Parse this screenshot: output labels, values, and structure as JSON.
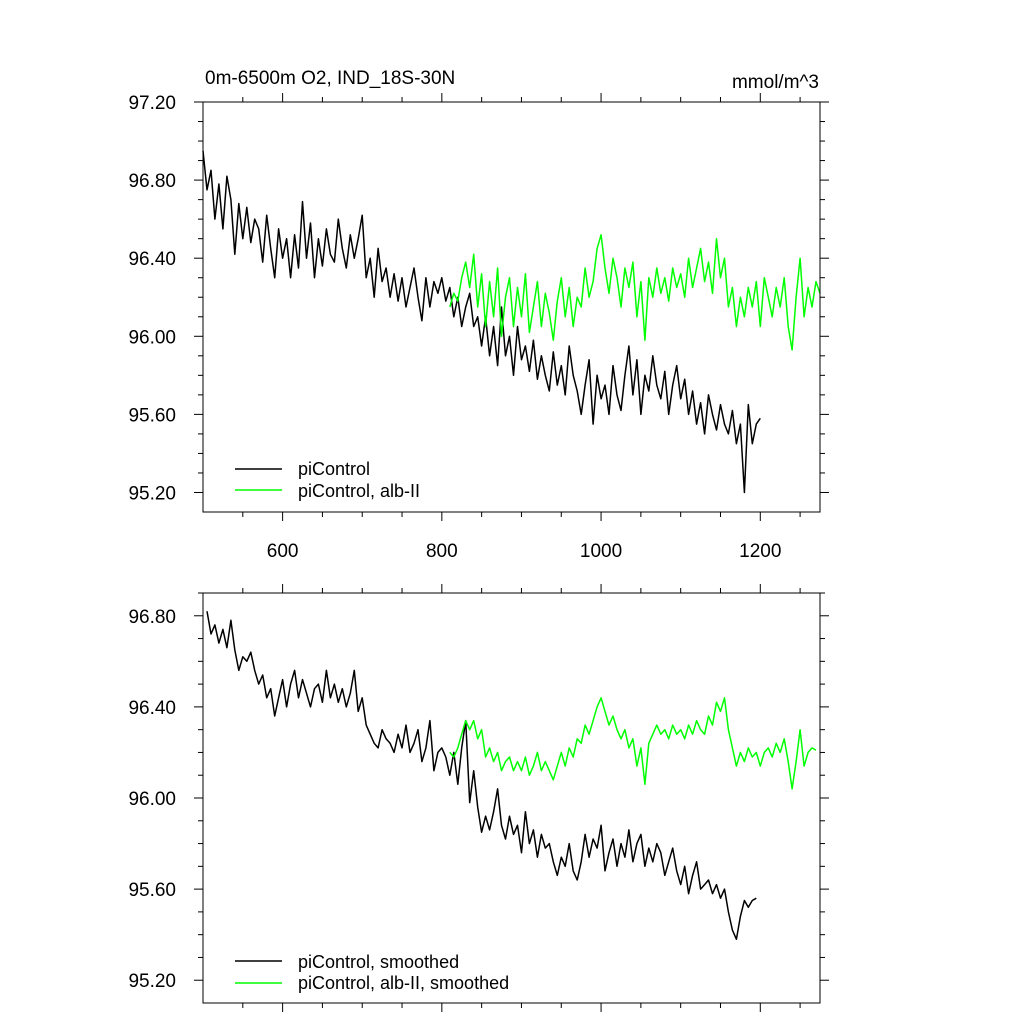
{
  "chart_data": [
    {
      "type": "line",
      "title": "0m-6500m O2, IND_18S-30N",
      "units": "mmol/m^3",
      "xlim": [
        500,
        1275
      ],
      "ylim": [
        95.1,
        97.2
      ],
      "x_ticks": [
        600,
        800,
        1000,
        1200
      ],
      "x_tick_labels": [
        "600",
        "800",
        "1000",
        "1200"
      ],
      "y_ticks": [
        95.2,
        95.6,
        96.0,
        96.4,
        96.8,
        97.2
      ],
      "y_tick_labels": [
        "95.20",
        "95.60",
        "96.00",
        "96.40",
        "96.80",
        "97.20"
      ],
      "legend_position": "bottom-left",
      "series": [
        {
          "name": "piControl",
          "color": "#000000",
          "x": [
            500,
            505,
            510,
            515,
            520,
            525,
            530,
            535,
            540,
            545,
            550,
            555,
            560,
            565,
            570,
            575,
            580,
            585,
            590,
            595,
            600,
            605,
            610,
            615,
            620,
            625,
            630,
            635,
            640,
            645,
            650,
            655,
            660,
            665,
            670,
            675,
            680,
            685,
            690,
            695,
            700,
            705,
            710,
            715,
            720,
            725,
            730,
            735,
            740,
            745,
            750,
            755,
            760,
            765,
            770,
            775,
            780,
            785,
            790,
            795,
            800,
            805,
            810,
            815,
            820,
            825,
            830,
            835,
            840,
            845,
            850,
            855,
            860,
            865,
            870,
            875,
            880,
            885,
            890,
            895,
            900,
            905,
            910,
            915,
            920,
            925,
            930,
            935,
            940,
            945,
            950,
            955,
            960,
            965,
            970,
            975,
            980,
            985,
            990,
            995,
            1000,
            1005,
            1010,
            1015,
            1020,
            1025,
            1030,
            1035,
            1040,
            1045,
            1050,
            1055,
            1060,
            1065,
            1070,
            1075,
            1080,
            1085,
            1090,
            1095,
            1100,
            1105,
            1110,
            1115,
            1120,
            1125,
            1130,
            1135,
            1140,
            1145,
            1150,
            1155,
            1160,
            1165,
            1170,
            1175,
            1180,
            1185,
            1190,
            1195,
            1200
          ],
          "values": [
            96.95,
            96.75,
            96.85,
            96.6,
            96.78,
            96.55,
            96.82,
            96.7,
            96.42,
            96.68,
            96.5,
            96.66,
            96.48,
            96.6,
            96.55,
            96.38,
            96.62,
            96.45,
            96.3,
            96.55,
            96.4,
            96.5,
            96.3,
            96.52,
            96.35,
            96.69,
            96.4,
            96.58,
            96.3,
            96.5,
            96.36,
            96.55,
            96.42,
            96.38,
            96.6,
            96.45,
            96.35,
            96.52,
            96.4,
            96.5,
            96.62,
            96.3,
            96.4,
            96.2,
            96.45,
            96.28,
            96.35,
            96.2,
            96.32,
            96.18,
            96.3,
            96.15,
            96.25,
            96.35,
            96.2,
            96.08,
            96.3,
            96.15,
            96.28,
            96.22,
            96.3,
            96.18,
            96.25,
            96.1,
            96.2,
            96.05,
            96.15,
            96.22,
            96.05,
            96.1,
            95.95,
            96.1,
            95.9,
            96.05,
            95.85,
            96.15,
            95.9,
            96.0,
            95.8,
            96.05,
            95.88,
            95.95,
            95.82,
            95.98,
            95.78,
            95.9,
            95.8,
            95.72,
            95.92,
            95.75,
            95.85,
            95.7,
            95.95,
            95.8,
            95.72,
            95.6,
            95.75,
            95.88,
            95.55,
            95.8,
            95.68,
            95.75,
            95.6,
            95.85,
            95.7,
            95.62,
            95.8,
            95.95,
            95.7,
            95.88,
            95.6,
            95.8,
            95.72,
            95.9,
            95.75,
            95.68,
            95.82,
            95.6,
            95.75,
            95.85,
            95.68,
            95.78,
            95.6,
            95.72,
            95.55,
            95.66,
            95.5,
            95.7,
            95.6,
            95.52,
            95.65,
            95.55,
            95.5,
            95.62,
            95.45,
            95.55,
            95.2,
            95.65,
            95.45,
            95.55,
            95.58
          ]
        },
        {
          "name": "piControl, alb-II",
          "color": "#00ff00",
          "x": [
            810,
            815,
            820,
            825,
            830,
            835,
            840,
            845,
            850,
            855,
            860,
            865,
            870,
            875,
            880,
            885,
            890,
            895,
            900,
            905,
            910,
            915,
            920,
            925,
            930,
            935,
            940,
            945,
            950,
            955,
            960,
            965,
            970,
            975,
            980,
            985,
            990,
            995,
            1000,
            1005,
            1010,
            1015,
            1020,
            1025,
            1030,
            1035,
            1040,
            1045,
            1050,
            1055,
            1060,
            1065,
            1070,
            1075,
            1080,
            1085,
            1090,
            1095,
            1100,
            1105,
            1110,
            1115,
            1120,
            1125,
            1130,
            1135,
            1140,
            1145,
            1150,
            1155,
            1160,
            1165,
            1170,
            1175,
            1180,
            1185,
            1190,
            1195,
            1200,
            1205,
            1210,
            1215,
            1220,
            1225,
            1230,
            1235,
            1240,
            1245,
            1250,
            1255,
            1260,
            1265,
            1270,
            1275
          ],
          "values": [
            96.15,
            96.22,
            96.18,
            96.3,
            96.38,
            96.25,
            96.42,
            96.15,
            96.32,
            96.05,
            96.28,
            96.1,
            96.35,
            96.0,
            96.2,
            96.3,
            96.05,
            96.25,
            96.1,
            96.32,
            96.02,
            96.15,
            96.28,
            96.05,
            96.22,
            96.12,
            95.98,
            96.18,
            96.3,
            96.1,
            96.25,
            96.05,
            96.2,
            96.15,
            96.35,
            96.2,
            96.28,
            96.45,
            96.52,
            96.35,
            96.22,
            96.4,
            96.3,
            96.15,
            96.35,
            96.25,
            96.38,
            96.1,
            96.28,
            95.98,
            96.3,
            96.2,
            96.35,
            96.22,
            96.3,
            96.18,
            96.35,
            96.25,
            96.32,
            96.2,
            96.4,
            96.25,
            96.35,
            96.45,
            96.28,
            96.38,
            96.22,
            96.5,
            96.3,
            96.4,
            96.15,
            96.25,
            96.05,
            96.2,
            96.1,
            96.25,
            96.15,
            96.28,
            96.05,
            96.3,
            96.2,
            96.1,
            96.25,
            96.15,
            96.3,
            96.05,
            95.93,
            96.2,
            96.4,
            96.1,
            96.25,
            96.15,
            96.28,
            96.22
          ]
        }
      ]
    },
    {
      "type": "line",
      "xlim": [
        500,
        1275
      ],
      "ylim": [
        95.1,
        96.9
      ],
      "x_ticks": [
        600,
        800,
        1000,
        1200
      ],
      "y_ticks": [
        95.2,
        95.6,
        96.0,
        96.4,
        96.8
      ],
      "y_tick_labels": [
        "95.20",
        "95.60",
        "96.00",
        "96.40",
        "96.80"
      ],
      "legend_position": "bottom-left",
      "series": [
        {
          "name": "piControl, smoothed",
          "color": "#000000",
          "x": [
            505,
            510,
            515,
            520,
            525,
            530,
            535,
            540,
            545,
            550,
            555,
            560,
            565,
            570,
            575,
            580,
            585,
            590,
            595,
            600,
            605,
            610,
            615,
            620,
            625,
            630,
            635,
            640,
            645,
            650,
            655,
            660,
            665,
            670,
            675,
            680,
            685,
            690,
            695,
            700,
            705,
            710,
            715,
            720,
            725,
            730,
            735,
            740,
            745,
            750,
            755,
            760,
            765,
            770,
            775,
            780,
            785,
            790,
            795,
            800,
            805,
            810,
            815,
            820,
            825,
            830,
            835,
            840,
            845,
            850,
            855,
            860,
            865,
            870,
            875,
            880,
            885,
            890,
            895,
            900,
            905,
            910,
            915,
            920,
            925,
            930,
            935,
            940,
            945,
            950,
            955,
            960,
            965,
            970,
            975,
            980,
            985,
            990,
            995,
            1000,
            1005,
            1010,
            1015,
            1020,
            1025,
            1030,
            1035,
            1040,
            1045,
            1050,
            1055,
            1060,
            1065,
            1070,
            1075,
            1080,
            1085,
            1090,
            1095,
            1100,
            1105,
            1110,
            1115,
            1120,
            1125,
            1130,
            1135,
            1140,
            1145,
            1150,
            1155,
            1160,
            1165,
            1170,
            1175,
            1180,
            1185,
            1190,
            1195
          ],
          "values": [
            96.82,
            96.72,
            96.76,
            96.68,
            96.74,
            96.66,
            96.78,
            96.65,
            96.56,
            96.62,
            96.6,
            96.64,
            96.56,
            96.5,
            96.54,
            96.44,
            96.48,
            96.36,
            96.44,
            96.52,
            96.4,
            96.5,
            96.56,
            96.44,
            96.52,
            96.46,
            96.4,
            96.48,
            96.5,
            96.42,
            96.56,
            96.44,
            96.5,
            96.42,
            96.48,
            96.4,
            96.46,
            96.56,
            96.38,
            96.44,
            96.32,
            96.28,
            96.24,
            96.22,
            96.3,
            96.26,
            96.24,
            96.2,
            96.28,
            96.22,
            96.32,
            96.2,
            96.24,
            96.3,
            96.16,
            96.22,
            96.34,
            96.12,
            96.2,
            96.22,
            96.18,
            96.1,
            96.2,
            96.06,
            96.22,
            96.34,
            95.98,
            96.12,
            95.96,
            95.85,
            95.92,
            95.86,
            95.94,
            96.04,
            95.88,
            95.82,
            95.92,
            95.84,
            95.88,
            95.76,
            95.94,
            95.8,
            95.86,
            95.74,
            95.84,
            95.78,
            95.8,
            95.72,
            95.66,
            95.74,
            95.7,
            95.8,
            95.68,
            95.64,
            95.72,
            95.84,
            95.74,
            95.82,
            95.78,
            95.88,
            95.68,
            95.76,
            95.82,
            95.7,
            95.8,
            95.74,
            95.86,
            95.72,
            95.8,
            95.84,
            95.7,
            95.78,
            95.72,
            95.8,
            95.76,
            95.66,
            95.72,
            95.78,
            95.68,
            95.62,
            95.7,
            95.58,
            95.66,
            95.72,
            95.6,
            95.62,
            95.64,
            95.58,
            95.62,
            95.56,
            95.6,
            95.5,
            95.42,
            95.38,
            95.48,
            95.55,
            95.52,
            95.55,
            95.56
          ]
        },
        {
          "name": "piControl, alb-II, smoothed",
          "color": "#00ff00",
          "x": [
            810,
            815,
            820,
            825,
            830,
            835,
            840,
            845,
            850,
            855,
            860,
            865,
            870,
            875,
            880,
            885,
            890,
            895,
            900,
            905,
            910,
            915,
            920,
            925,
            930,
            935,
            940,
            945,
            950,
            955,
            960,
            965,
            970,
            975,
            980,
            985,
            990,
            995,
            1000,
            1005,
            1010,
            1015,
            1020,
            1025,
            1030,
            1035,
            1040,
            1045,
            1050,
            1055,
            1060,
            1065,
            1070,
            1075,
            1080,
            1085,
            1090,
            1095,
            1100,
            1105,
            1110,
            1115,
            1120,
            1125,
            1130,
            1135,
            1140,
            1145,
            1150,
            1155,
            1160,
            1165,
            1170,
            1175,
            1180,
            1185,
            1190,
            1195,
            1200,
            1205,
            1210,
            1215,
            1220,
            1225,
            1230,
            1235,
            1240,
            1245,
            1250,
            1255,
            1260,
            1265,
            1270
          ],
          "values": [
            96.2,
            96.18,
            96.22,
            96.28,
            96.34,
            96.3,
            96.34,
            96.26,
            96.3,
            96.18,
            96.22,
            96.16,
            96.2,
            96.12,
            96.16,
            96.18,
            96.12,
            96.16,
            96.12,
            96.18,
            96.1,
            96.14,
            96.2,
            96.12,
            96.16,
            96.12,
            96.08,
            96.14,
            96.2,
            96.14,
            96.22,
            96.18,
            96.26,
            96.24,
            96.32,
            96.28,
            96.34,
            96.4,
            96.44,
            96.38,
            96.32,
            96.36,
            96.3,
            96.26,
            96.3,
            96.22,
            96.26,
            96.14,
            96.22,
            96.06,
            96.24,
            96.28,
            96.32,
            96.28,
            96.3,
            96.26,
            96.32,
            96.28,
            96.3,
            96.26,
            96.32,
            96.28,
            96.34,
            96.3,
            96.28,
            96.36,
            96.32,
            96.42,
            96.38,
            96.44,
            96.3,
            96.22,
            96.14,
            96.2,
            96.16,
            96.22,
            96.18,
            96.2,
            96.14,
            96.2,
            96.22,
            96.18,
            96.24,
            96.2,
            96.26,
            96.16,
            96.04,
            96.16,
            96.3,
            96.14,
            96.2,
            96.22,
            96.21
          ]
        }
      ]
    }
  ]
}
